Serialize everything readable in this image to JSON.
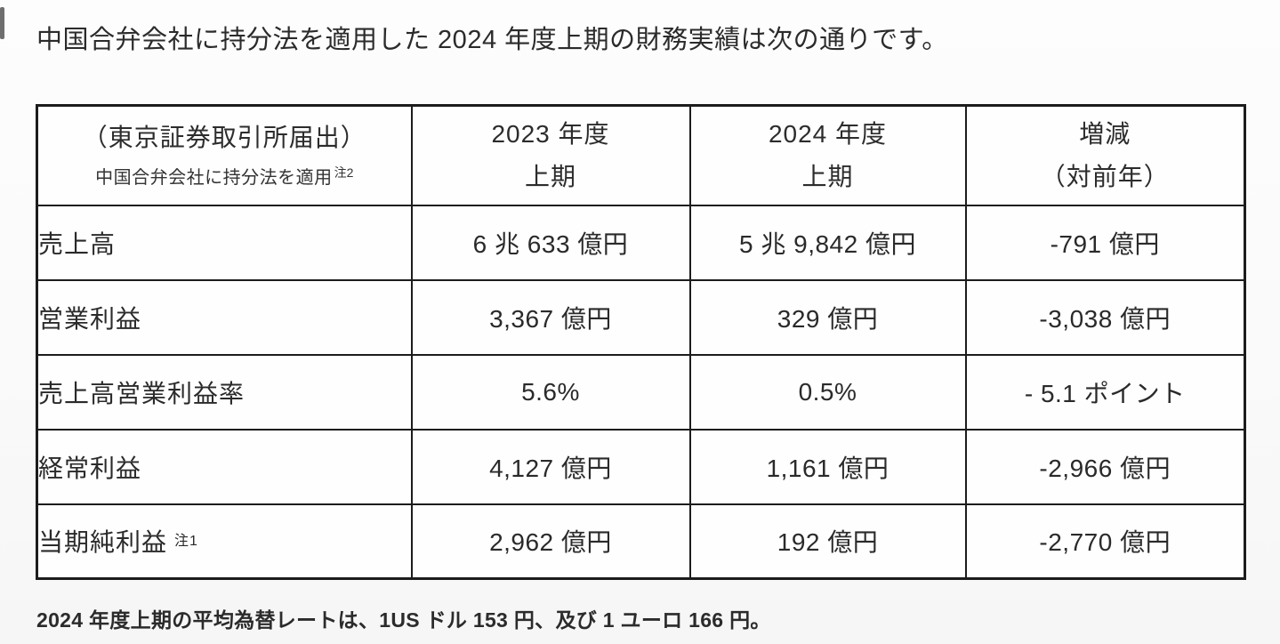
{
  "page": {
    "title": "中国合弁会社に持分法を適用した 2024 年度上期の財務実績は次の通りです。",
    "footnote": "2024 年度上期の平均為替レートは、1US ドル 153 円、及び 1 ユーロ 166 円。"
  },
  "table": {
    "header": {
      "col1_line1": "（東京証券取引所届出）",
      "col1_line2": "中国合弁会社に持分法を適用",
      "col1_line2_sup": "注2",
      "col2_line1": "2023 年度",
      "col2_line2": "上期",
      "col3_line1": "2024 年度",
      "col3_line2": "上期",
      "col4_line1": "増減",
      "col4_line2": "（対前年）"
    },
    "rows": [
      {
        "label": "売上高",
        "label_sup": "",
        "fy2023": "6 兆 633 億円",
        "fy2024": "5 兆 9,842 億円",
        "change": "-791 億円"
      },
      {
        "label": "営業利益",
        "label_sup": "",
        "fy2023": "3,367 億円",
        "fy2024": "329 億円",
        "change": "-3,038 億円"
      },
      {
        "label": "売上高営業利益率",
        "label_sup": "",
        "fy2023": "5.6%",
        "fy2024": "0.5%",
        "change": "- 5.1 ポイント"
      },
      {
        "label": "経常利益",
        "label_sup": "",
        "fy2023": "4,127 億円",
        "fy2024": "1,161 億円",
        "change": "-2,966 億円"
      },
      {
        "label": "当期純利益",
        "label_sup": "注1",
        "fy2023": "2,962 億円",
        "fy2024": "192 億円",
        "change": "-2,770 億円"
      }
    ]
  }
}
